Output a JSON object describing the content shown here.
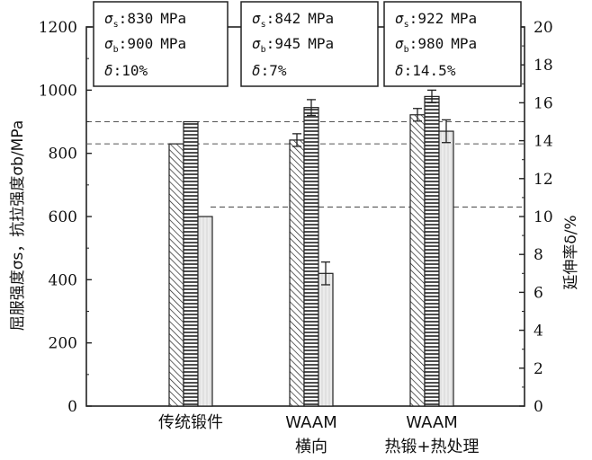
{
  "chart_data": {
    "type": "bar",
    "categories": [
      {
        "lines": [
          "传统锻件"
        ]
      },
      {
        "lines": [
          "WAAM",
          "横向"
        ]
      },
      {
        "lines": [
          "WAAM",
          "热锻+热处理"
        ]
      }
    ],
    "series": [
      {
        "key": "ys",
        "values": [
          830,
          842,
          922
        ],
        "errors": [
          0,
          20,
          20
        ],
        "axis": "left",
        "pattern": "diag"
      },
      {
        "key": "uts",
        "values": [
          900,
          945,
          980
        ],
        "errors": [
          0,
          25,
          20
        ],
        "axis": "left",
        "pattern": "horiz"
      },
      {
        "key": "elong",
        "values": [
          10,
          7,
          14.5
        ],
        "errors": [
          0,
          0.6,
          0.6
        ],
        "axis": "right",
        "pattern": "vert"
      }
    ],
    "left_axis": {
      "label": "屈服强度σs，抗拉强度σb/MPa",
      "ylim": [
        0,
        1200
      ],
      "ticks": [
        "0",
        "200",
        "400",
        "600",
        "800",
        "1000",
        "1200"
      ]
    },
    "right_axis": {
      "label": "延伸率δ/%",
      "ylim": [
        0,
        20
      ],
      "ticks": [
        "0",
        "2",
        "4",
        "6",
        "8",
        "10",
        "12",
        "14",
        "16",
        "18",
        "20"
      ]
    },
    "reference_lines": [
      {
        "axis": "left",
        "value": 900
      },
      {
        "axis": "left",
        "value": 830
      },
      {
        "axis": "right",
        "value": 10.5
      }
    ],
    "annotations": [
      {
        "sigma_s": "830",
        "sigma_b": "900",
        "unit": "MPa",
        "delta": "10%"
      },
      {
        "sigma_s": "842",
        "sigma_b": "945",
        "unit": "MPa",
        "delta": "7%"
      },
      {
        "sigma_s": "922",
        "sigma_b": "980",
        "unit": "MPa",
        "delta": "14.5%"
      }
    ],
    "colors": {
      "bar_fill": "#e8e8e8",
      "stroke": "#222222",
      "reference_line": "#555555"
    }
  }
}
